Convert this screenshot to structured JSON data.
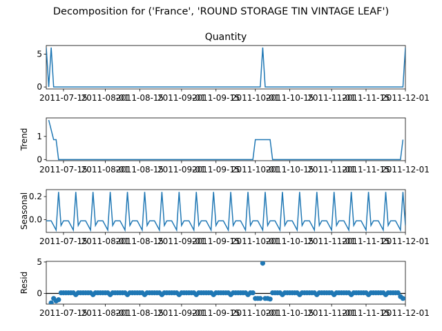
{
  "figure": {
    "suptitle": "Decomposition for ('France', 'ROUND STORAGE TIN VINTAGE LEAF')"
  },
  "colors": {
    "line": "#1f77b4",
    "axis": "#000000"
  },
  "x_ticks": [
    "2011-07-15",
    "2011-08-01",
    "2011-08-15",
    "2011-09-01",
    "2011-09-15",
    "2011-10-01",
    "2011-10-15",
    "2011-11-01",
    "2011-11-15",
    "2011-12-01"
  ],
  "chart_data": [
    {
      "type": "line",
      "title": "Quantity",
      "ylabel": "",
      "x_range": [
        "2011-07-08",
        "2011-12-01"
      ],
      "ylim": [
        -0.3,
        6.3
      ],
      "yticks": [
        0,
        5
      ],
      "series": [
        {
          "points": [
            [
              "2011-07-08",
              6
            ],
            [
              "2011-07-09",
              0
            ],
            [
              "2011-07-10",
              6
            ],
            [
              "2011-07-11",
              0
            ],
            [
              "2011-10-03",
              0
            ],
            [
              "2011-10-04",
              6
            ],
            [
              "2011-10-05",
              0
            ],
            [
              "2011-11-30",
              0
            ],
            [
              "2011-12-01",
              6
            ]
          ]
        }
      ]
    },
    {
      "type": "line",
      "title": "",
      "ylabel": "Trend",
      "x_range": [
        "2011-07-08",
        "2011-12-01"
      ],
      "ylim": [
        -0.05,
        1.8
      ],
      "yticks": [
        0,
        1
      ],
      "series": [
        {
          "points": [
            [
              "2011-07-09",
              1.71
            ],
            [
              "2011-07-11",
              0.86
            ],
            [
              "2011-07-12",
              0.86
            ],
            [
              "2011-07-13",
              0
            ],
            [
              "2011-09-30",
              0
            ],
            [
              "2011-10-01",
              0.86
            ],
            [
              "2011-10-07",
              0.86
            ],
            [
              "2011-10-08",
              0
            ],
            [
              "2011-11-29",
              0
            ],
            [
              "2011-11-30",
              0.86
            ]
          ]
        }
      ]
    },
    {
      "type": "line",
      "title": "",
      "ylabel": "Seasonal",
      "x_range": [
        "2011-07-08",
        "2011-12-01"
      ],
      "ylim": [
        -0.11,
        0.26
      ],
      "yticks": [
        0.0,
        0.2
      ],
      "ytick_labels": [
        "0.0",
        "0.2"
      ],
      "seasonal_pattern": [
        0.24,
        -0.05,
        -0.01,
        -0.01,
        -0.01,
        -0.05,
        -0.09
      ],
      "pattern_start": "2011-07-13"
    },
    {
      "type": "scatter",
      "title": "",
      "ylabel": "Resid",
      "x_range": [
        "2011-07-08",
        "2011-12-01"
      ],
      "ylim": [
        -1.7,
        5.1
      ],
      "yticks": [
        0,
        5
      ],
      "baseline": 0,
      "points": [
        [
          "2011-07-10",
          -1.5
        ],
        [
          "2011-07-11",
          -0.8
        ],
        [
          "2011-07-12",
          -1.2
        ],
        [
          "2011-07-13",
          -1.0
        ],
        [
          "2011-10-01",
          -0.8
        ],
        [
          "2011-10-02",
          -0.8
        ],
        [
          "2011-10-03",
          -0.8
        ],
        [
          "2011-10-04",
          4.8
        ],
        [
          "2011-10-05",
          -0.8
        ],
        [
          "2011-10-06",
          -0.8
        ],
        [
          "2011-10-07",
          -0.9
        ],
        [
          "2011-11-29",
          -0.5
        ],
        [
          "2011-11-30",
          -0.8
        ]
      ],
      "background_points": {
        "from": "2011-07-14",
        "to": "2011-11-28",
        "pattern": [
          0.1,
          0.1,
          0.1,
          0.1,
          0.1,
          0.1,
          -0.2
        ]
      }
    }
  ]
}
